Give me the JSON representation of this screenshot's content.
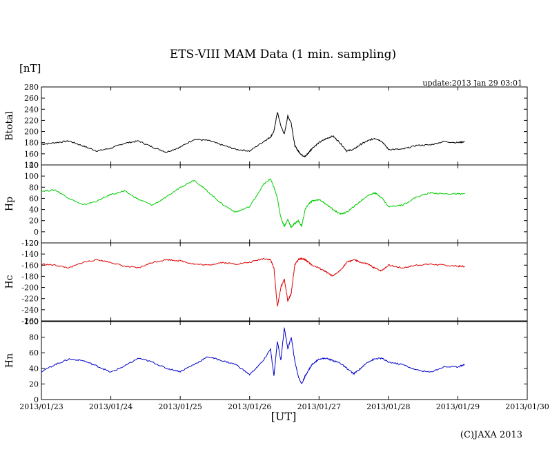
{
  "title": "ETS-VIII MAM Data (1 min. sampling)",
  "unit_label": "[nT]",
  "update_text": "update:2013 Jan 29 03:01",
  "xlabel": "[UT]",
  "copyright": "(C)JAXA 2013",
  "chart_data": [
    {
      "type": "line",
      "name": "Btotal",
      "ylabel": "Btotal",
      "ylim": [
        140,
        280
      ],
      "yticks": [
        140,
        160,
        180,
        200,
        220,
        240,
        260,
        280
      ],
      "color": "#000000",
      "x_days": [
        0,
        0.2,
        0.4,
        0.6,
        0.8,
        1.0,
        1.2,
        1.4,
        1.6,
        1.8,
        2.0,
        2.2,
        2.4,
        2.6,
        2.8,
        3.0,
        3.2,
        3.3,
        3.35,
        3.4,
        3.45,
        3.5,
        3.55,
        3.6,
        3.65,
        3.7,
        3.75,
        3.8,
        3.85,
        3.9,
        4.0,
        4.1,
        4.2,
        4.3,
        4.4,
        4.5,
        4.6,
        4.7,
        4.8,
        4.9,
        5.0,
        5.2,
        5.4,
        5.6,
        5.8,
        6.0,
        6.1
      ],
      "values": [
        177,
        180,
        183,
        174,
        165,
        170,
        179,
        183,
        172,
        163,
        172,
        186,
        184,
        176,
        168,
        165,
        182,
        190,
        200,
        235,
        210,
        195,
        228,
        215,
        175,
        165,
        158,
        155,
        162,
        170,
        180,
        187,
        192,
        180,
        165,
        168,
        177,
        183,
        188,
        183,
        168,
        168,
        175,
        176,
        182,
        180,
        182
      ]
    },
    {
      "type": "line",
      "name": "Hp",
      "ylabel": "Hp",
      "ylim": [
        -20,
        120
      ],
      "yticks": [
        -20,
        0,
        20,
        40,
        60,
        80,
        100,
        120
      ],
      "color": "#00cc00",
      "x_days": [
        0,
        0.2,
        0.4,
        0.6,
        0.8,
        1.0,
        1.2,
        1.4,
        1.6,
        1.8,
        2.0,
        2.2,
        2.4,
        2.6,
        2.8,
        3.0,
        3.2,
        3.3,
        3.35,
        3.4,
        3.45,
        3.5,
        3.55,
        3.6,
        3.65,
        3.7,
        3.75,
        3.8,
        3.85,
        3.9,
        4.0,
        4.1,
        4.2,
        4.3,
        4.4,
        4.5,
        4.6,
        4.7,
        4.8,
        4.9,
        5.0,
        5.2,
        5.4,
        5.6,
        5.8,
        6.0,
        6.1
      ],
      "values": [
        73,
        75,
        60,
        48,
        55,
        67,
        73,
        58,
        48,
        62,
        80,
        93,
        72,
        50,
        35,
        45,
        85,
        95,
        80,
        60,
        25,
        10,
        22,
        8,
        15,
        20,
        10,
        40,
        50,
        55,
        58,
        50,
        40,
        32,
        35,
        45,
        55,
        65,
        70,
        62,
        45,
        48,
        62,
        70,
        68,
        68,
        68
      ]
    },
    {
      "type": "line",
      "name": "Hc",
      "ylabel": "Hc",
      "ylim": [
        -260,
        -120
      ],
      "yticks": [
        -260,
        -240,
        -220,
        -200,
        -180,
        -160,
        -140,
        -120
      ],
      "color": "#dd0000",
      "x_days": [
        0,
        0.2,
        0.4,
        0.6,
        0.8,
        1.0,
        1.2,
        1.4,
        1.6,
        1.8,
        2.0,
        2.2,
        2.4,
        2.6,
        2.8,
        3.0,
        3.2,
        3.3,
        3.35,
        3.4,
        3.45,
        3.5,
        3.55,
        3.6,
        3.65,
        3.7,
        3.75,
        3.8,
        3.85,
        3.9,
        4.0,
        4.1,
        4.2,
        4.3,
        4.4,
        4.5,
        4.6,
        4.7,
        4.8,
        4.9,
        5.0,
        5.2,
        5.4,
        5.6,
        5.8,
        6.0,
        6.1
      ],
      "values": [
        -158,
        -160,
        -165,
        -155,
        -150,
        -155,
        -162,
        -165,
        -155,
        -150,
        -152,
        -158,
        -160,
        -155,
        -158,
        -155,
        -148,
        -150,
        -165,
        -235,
        -200,
        -185,
        -225,
        -210,
        -160,
        -150,
        -148,
        -150,
        -155,
        -160,
        -165,
        -172,
        -180,
        -170,
        -155,
        -150,
        -155,
        -158,
        -165,
        -170,
        -160,
        -165,
        -160,
        -158,
        -160,
        -162,
        -162
      ]
    },
    {
      "type": "line",
      "name": "Hn",
      "ylabel": "Hn",
      "ylim": [
        0,
        100
      ],
      "yticks": [
        0,
        20,
        40,
        60,
        80,
        100
      ],
      "color": "#0000cc",
      "x_days": [
        0,
        0.2,
        0.4,
        0.6,
        0.8,
        1.0,
        1.2,
        1.4,
        1.6,
        1.8,
        2.0,
        2.2,
        2.4,
        2.6,
        2.8,
        3.0,
        3.2,
        3.3,
        3.35,
        3.4,
        3.45,
        3.5,
        3.55,
        3.6,
        3.65,
        3.7,
        3.75,
        3.8,
        3.85,
        3.9,
        4.0,
        4.1,
        4.2,
        4.3,
        4.4,
        4.5,
        4.6,
        4.7,
        4.8,
        4.9,
        5.0,
        5.2,
        5.4,
        5.6,
        5.8,
        6.0,
        6.1
      ],
      "values": [
        36,
        45,
        52,
        50,
        43,
        35,
        43,
        53,
        48,
        40,
        36,
        45,
        55,
        50,
        45,
        32,
        50,
        65,
        30,
        75,
        50,
        92,
        65,
        80,
        50,
        30,
        20,
        30,
        38,
        45,
        52,
        53,
        50,
        47,
        40,
        33,
        40,
        48,
        52,
        53,
        48,
        45,
        38,
        35,
        42,
        42,
        45
      ]
    }
  ],
  "x_axis": {
    "ticks": [
      "2013/01/23",
      "2013/01/24",
      "2013/01/25",
      "2013/01/26",
      "2013/01/27",
      "2013/01/28",
      "2013/01/29",
      "2013/01/30"
    ],
    "xlim_days": [
      0,
      7
    ]
  }
}
